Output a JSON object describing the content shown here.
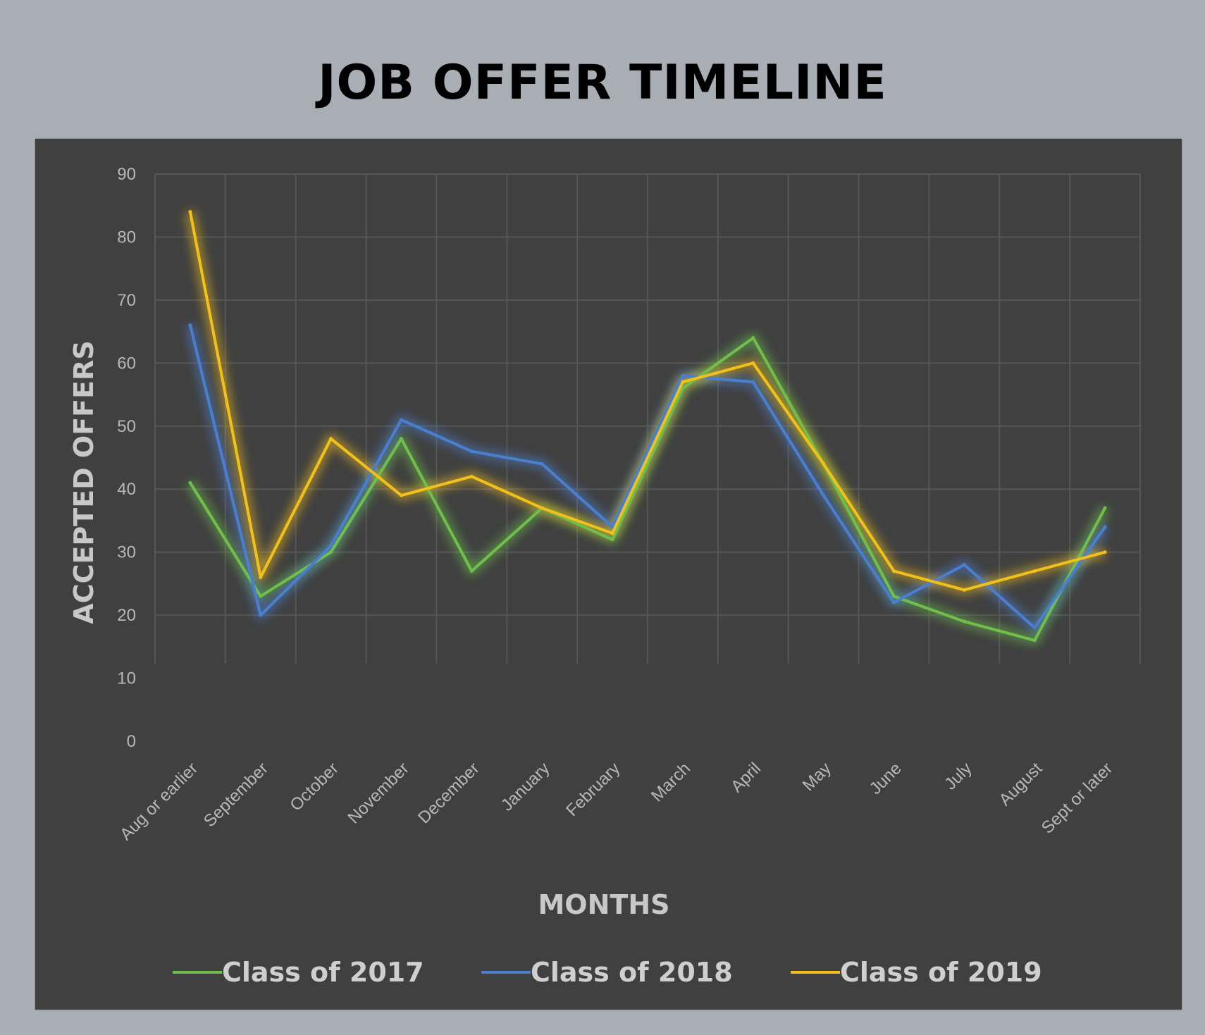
{
  "title": "JOB OFFER TIMELINE",
  "chart_data": {
    "type": "line",
    "categories": [
      "Aug or earlier",
      "September",
      "October",
      "November",
      "December",
      "January",
      "February",
      "March",
      "April",
      "May",
      "June",
      "July",
      "August",
      "Sept or later"
    ],
    "series": [
      {
        "name": "Class of 2017",
        "color": "#6fbf4a",
        "values": [
          41,
          23,
          30,
          48,
          27,
          37,
          32,
          56,
          64,
          44,
          23,
          19,
          16,
          37
        ]
      },
      {
        "name": "Class of 2018",
        "color": "#4a7fd0",
        "values": [
          66,
          20,
          31,
          51,
          46,
          44,
          34,
          58,
          57,
          39,
          22,
          28,
          18,
          34
        ]
      },
      {
        "name": "Class of 2019",
        "color": "#f2c01b",
        "values": [
          84,
          26,
          48,
          39,
          42,
          37,
          33,
          57,
          60,
          44,
          27,
          24,
          27,
          30
        ]
      }
    ],
    "xlabel": "MONTHS",
    "ylabel": "ACCEPTED OFFERS",
    "ylim": [
      0,
      90
    ],
    "yticks": [
      0,
      10,
      20,
      30,
      40,
      50,
      60,
      70,
      80,
      90
    ],
    "grid": true,
    "legend_position": "bottom"
  }
}
